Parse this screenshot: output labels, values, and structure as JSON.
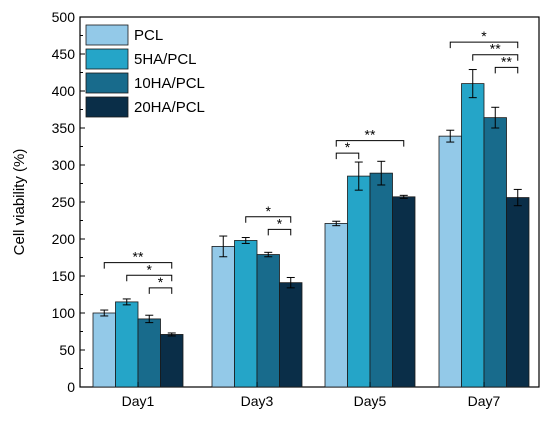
{
  "chart_data": {
    "type": "bar",
    "ylabel": "Cell viability (%)",
    "xlabel": "",
    "ylim": [
      0,
      500
    ],
    "yticks": [
      0,
      50,
      100,
      150,
      200,
      250,
      300,
      350,
      400,
      450,
      500
    ],
    "grid": false,
    "legend_position": "top-left",
    "categories": [
      "Day1",
      "Day3",
      "Day5",
      "Day7"
    ],
    "series": [
      {
        "name": "PCL",
        "color": "#93c9e8",
        "values": [
          100,
          190,
          221,
          339
        ],
        "errors": [
          4,
          14,
          3,
          8
        ]
      },
      {
        "name": "5HA/PCL",
        "color": "#25a5c8",
        "values": [
          115,
          198,
          285,
          410
        ],
        "errors": [
          4,
          4,
          19,
          19
        ]
      },
      {
        "name": "10HA/PCL",
        "color": "#186b8c",
        "values": [
          92,
          179,
          289,
          364
        ],
        "errors": [
          5,
          3,
          16,
          14
        ]
      },
      {
        "name": "20HA/PCL",
        "color": "#0a2e48",
        "values": [
          71,
          141,
          257,
          256
        ],
        "errors": [
          2,
          7,
          2,
          11
        ]
      }
    ],
    "significance": [
      {
        "category": 0,
        "from": 0,
        "to": 3,
        "label": "**",
        "y": 168
      },
      {
        "category": 0,
        "from": 1,
        "to": 3,
        "label": "*",
        "y": 151
      },
      {
        "category": 0,
        "from": 2,
        "to": 3,
        "label": "*",
        "y": 134
      },
      {
        "category": 1,
        "from": 1,
        "to": 3,
        "label": "*",
        "y": 230
      },
      {
        "category": 1,
        "from": 2,
        "to": 3,
        "label": "*",
        "y": 213
      },
      {
        "category": 2,
        "from": 0,
        "to": 3,
        "label": "**",
        "y": 333
      },
      {
        "category": 2,
        "from": 0,
        "to": 1,
        "label": "*",
        "y": 316
      },
      {
        "category": 3,
        "from": 0,
        "to": 3,
        "label": "*",
        "y": 466
      },
      {
        "category": 3,
        "from": 1,
        "to": 3,
        "label": "**",
        "y": 449
      },
      {
        "category": 3,
        "from": 2,
        "to": 3,
        "label": "**",
        "y": 432
      }
    ]
  }
}
